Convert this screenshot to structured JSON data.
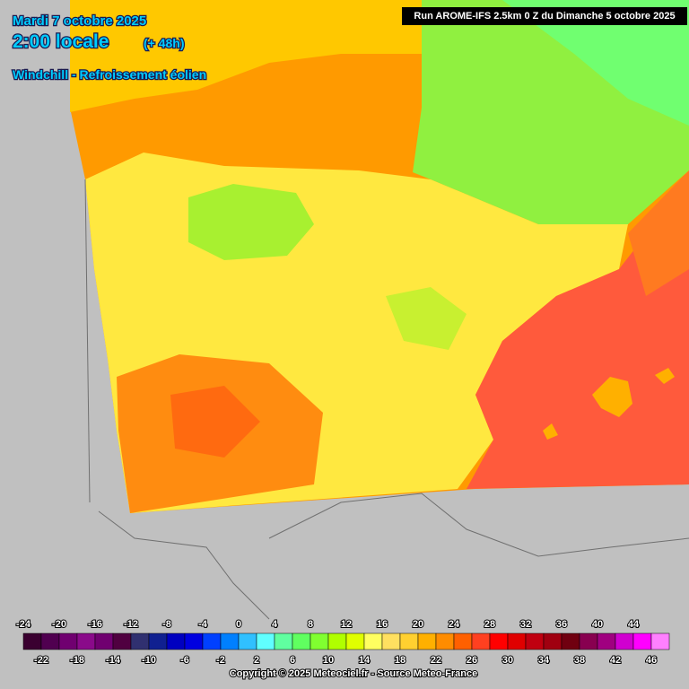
{
  "header": {
    "date": "Mardi 7 octobre 2025",
    "time": "2:00 locale",
    "lead": "(+ 48h)",
    "parameter": "Windchill - Refroissement éolien",
    "run": "Run AROME-IFS 2.5km 0 Z du Dimanche 5 octobre 2025"
  },
  "legend": {
    "values": [
      -24,
      -22,
      -20,
      -18,
      -16,
      -14,
      -12,
      -10,
      -8,
      -6,
      -4,
      -2,
      0,
      2,
      4,
      6,
      8,
      10,
      12,
      14,
      16,
      18,
      20,
      22,
      24,
      26,
      28,
      30,
      32,
      34,
      36,
      38,
      40,
      42,
      44,
      46
    ],
    "colors": [
      "#3a0030",
      "#500050",
      "#700070",
      "#8a0a8a",
      "#700070",
      "#500040",
      "#303070",
      "#102090",
      "#0000c0",
      "#0000e0",
      "#0040ff",
      "#0080ff",
      "#30c0ff",
      "#60ffff",
      "#60ffa0",
      "#60ff60",
      "#80ff30",
      "#b0ff00",
      "#e0ff00",
      "#ffff60",
      "#ffe060",
      "#ffd030",
      "#ffb000",
      "#ff8c00",
      "#ff6000",
      "#ff4020",
      "#ff0000",
      "#e00000",
      "#c00010",
      "#a00010",
      "#700010",
      "#880050",
      "#a00080",
      "#d000d0",
      "#ff00ff",
      "#ff80ff"
    ]
  },
  "footer": {
    "copyright": "Copyright © 2025 Meteociel.fr - Source Meteo-France"
  }
}
